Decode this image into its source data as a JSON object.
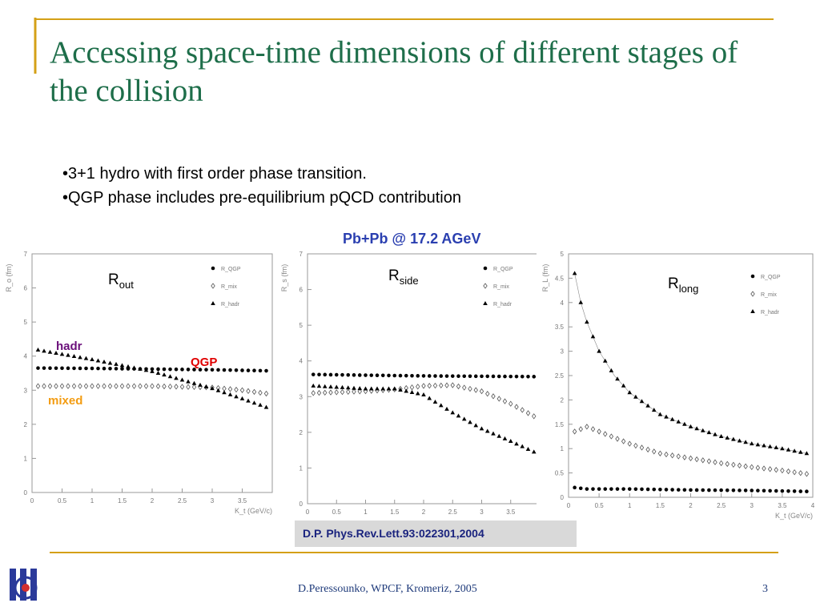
{
  "slide": {
    "title": "Accessing space-time dimensions of different stages of the collision",
    "bullets": [
      "•3+1 hydro with first order phase transition.",
      "•QGP phase includes pre-equilibrium pQCD contribution"
    ],
    "headline": "Pb+Pb @ 17.2 AGeV",
    "reference": "D.P. Phys.Rev.Lett.93:022301,2004",
    "footer": "D.Peressounko, WPCF, Kromeriz, 2005",
    "page_number": "3",
    "colors": {
      "title": "#1e6e4a",
      "headline": "#2a3fb0",
      "frame_line": "#d4a017",
      "hadr_label": "#6a0f7a",
      "qgp_label": "#e00000",
      "mixed_label": "#f39c12"
    }
  },
  "chart_data": [
    {
      "type": "scatter",
      "title": "R_out",
      "title_main": "R",
      "title_sub": "out",
      "ylabel": "R_o (fm)",
      "xlabel": "K_t (GeV/c)",
      "xlim": [
        0,
        4
      ],
      "ylim": [
        0,
        7
      ],
      "xticks": [
        "0",
        "0.5",
        "1",
        "1.5",
        "2",
        "2.5",
        "3",
        "3.5"
      ],
      "yticks": [
        "0",
        "1",
        "2",
        "3",
        "4",
        "5",
        "6",
        "7"
      ],
      "legend": [
        "R_QGP",
        "R_mix",
        "R_hadr"
      ],
      "annotations": [
        "hadr",
        "QGP",
        "mixed"
      ],
      "series": [
        {
          "name": "R_QGP",
          "marker": "circle",
          "x": [
            0.1,
            1.0,
            2.0,
            3.0,
            3.9
          ],
          "y": [
            3.65,
            3.64,
            3.62,
            3.6,
            3.57
          ]
        },
        {
          "name": "R_mix",
          "marker": "diamond",
          "x": [
            0.1,
            1.0,
            2.0,
            3.0,
            3.5,
            3.9
          ],
          "y": [
            3.12,
            3.12,
            3.12,
            3.08,
            3.0,
            2.9
          ]
        },
        {
          "name": "R_hadr",
          "marker": "triangle",
          "x": [
            0.1,
            1.0,
            2.0,
            2.5,
            3.0,
            3.5,
            3.9
          ],
          "y": [
            4.18,
            3.9,
            3.55,
            3.3,
            3.05,
            2.75,
            2.5
          ]
        }
      ]
    },
    {
      "type": "scatter",
      "title": "R_side",
      "title_main": "R",
      "title_sub": "side",
      "ylabel": "R_s (fm)",
      "xlabel": "",
      "xlim": [
        0,
        4
      ],
      "ylim": [
        0,
        7
      ],
      "xticks": [
        "0",
        "0.5",
        "1",
        "1.5",
        "2",
        "2.5",
        "3",
        "3.5"
      ],
      "yticks": [
        "0",
        "1",
        "2",
        "3",
        "4",
        "5",
        "6",
        "7"
      ],
      "legend": [
        "R_QGP",
        "R_mix",
        "R_hadr"
      ],
      "annotations": [],
      "series": [
        {
          "name": "R_QGP",
          "marker": "circle",
          "x": [
            0.1,
            1.0,
            2.0,
            3.0,
            3.9
          ],
          "y": [
            3.62,
            3.6,
            3.58,
            3.57,
            3.56
          ]
        },
        {
          "name": "R_mix",
          "marker": "diamond",
          "x": [
            0.1,
            1.0,
            1.5,
            2.0,
            2.5,
            3.0,
            3.5,
            3.9
          ],
          "y": [
            3.1,
            3.15,
            3.2,
            3.3,
            3.32,
            3.15,
            2.8,
            2.45
          ]
        },
        {
          "name": "R_hadr",
          "marker": "triangle",
          "x": [
            0.1,
            1.0,
            1.5,
            2.0,
            2.5,
            3.0,
            3.5,
            3.9
          ],
          "y": [
            3.3,
            3.22,
            3.22,
            3.05,
            2.55,
            2.1,
            1.75,
            1.45
          ]
        }
      ]
    },
    {
      "type": "scatter",
      "title": "R_long",
      "title_main": "R",
      "title_sub": "long",
      "ylabel": "R_L (fm)",
      "xlabel": "K_t (GeV/c)",
      "xlim": [
        0,
        4
      ],
      "ylim": [
        0,
        5
      ],
      "xticks": [
        "0",
        "0.5",
        "1",
        "1.5",
        "2",
        "2.5",
        "3",
        "3.5",
        "4"
      ],
      "yticks": [
        "0",
        "0.5",
        "1",
        "1.5",
        "2",
        "2.5",
        "3",
        "3.5",
        "4",
        "4.5",
        "5"
      ],
      "legend": [
        "R_QGP",
        "R_mix",
        "R_hadr"
      ],
      "annotations": [],
      "series": [
        {
          "name": "R_QGP",
          "marker": "circle",
          "x": [
            0.1,
            0.3,
            1.0,
            2.0,
            3.0,
            3.9
          ],
          "y": [
            0.2,
            0.17,
            0.17,
            0.15,
            0.14,
            0.12
          ]
        },
        {
          "name": "R_mix",
          "marker": "diamond",
          "x": [
            0.1,
            0.3,
            0.5,
            1.0,
            1.5,
            2.0,
            2.5,
            3.0,
            3.5,
            3.9
          ],
          "y": [
            1.35,
            1.45,
            1.35,
            1.1,
            0.9,
            0.8,
            0.7,
            0.62,
            0.55,
            0.48
          ]
        },
        {
          "name": "R_hadr",
          "marker": "triangle",
          "x": [
            0.1,
            0.2,
            0.3,
            0.5,
            0.75,
            1.0,
            1.5,
            2.0,
            2.5,
            3.0,
            3.5,
            3.9
          ],
          "y": [
            4.6,
            4.0,
            3.6,
            3.0,
            2.5,
            2.15,
            1.7,
            1.45,
            1.25,
            1.1,
            1.0,
            0.9
          ]
        }
      ]
    }
  ]
}
